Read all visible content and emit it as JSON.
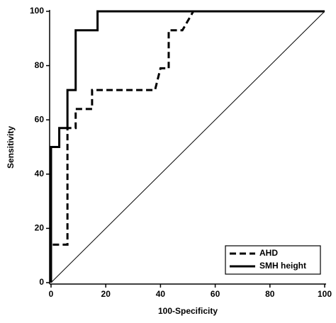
{
  "chart_data": {
    "type": "line",
    "x_label": "100-Specificity",
    "y_label": "Sensitivity",
    "xlim": [
      0,
      100
    ],
    "ylim": [
      0,
      100
    ],
    "xticks": [
      0,
      20,
      40,
      60,
      80,
      100
    ],
    "yticks": [
      0,
      20,
      40,
      60,
      80,
      100
    ],
    "reference_line": true,
    "legend": "lower right",
    "series": [
      {
        "name": "AHD",
        "color": "#000000",
        "line_style": "dashed",
        "x": [
          0,
          0,
          6,
          6,
          9,
          9,
          15,
          15,
          38,
          40,
          43,
          43,
          48,
          52,
          100
        ],
        "values": [
          0,
          14,
          14,
          57,
          57,
          64,
          64,
          71,
          71,
          79,
          79,
          93,
          93,
          100,
          100
        ]
      },
      {
        "name": "SMH height",
        "color": "#000000",
        "line_style": "solid",
        "x": [
          0,
          0,
          3,
          3,
          6,
          6,
          9,
          9,
          17,
          17,
          100
        ],
        "values": [
          0,
          50,
          50,
          57,
          57,
          71,
          71,
          93,
          93,
          100,
          100
        ]
      }
    ]
  }
}
